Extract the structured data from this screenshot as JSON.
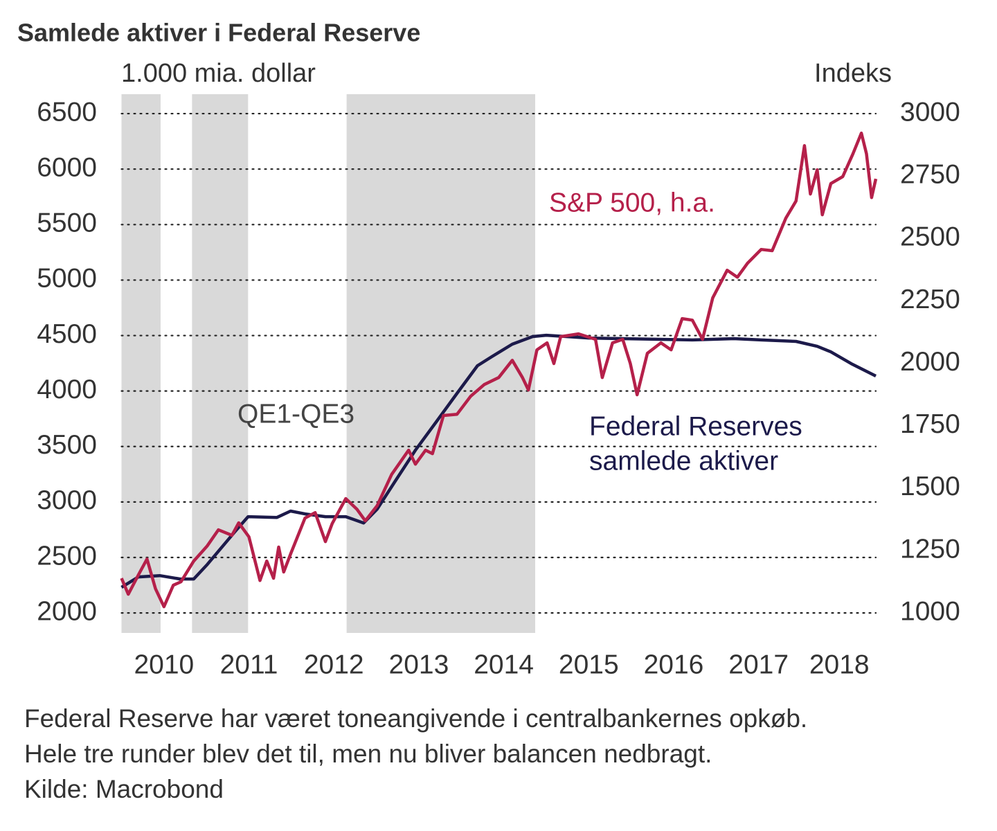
{
  "chart_data": {
    "type": "line",
    "title": "Samlede aktiver i Federal Reserve",
    "y_label": "1.000 mia. dollar",
    "y2_label": "Indeks",
    "xlim": [
      2010.0,
      2018.88
    ],
    "xticks": [
      {
        "value": 2010.5,
        "label": "2010"
      },
      {
        "value": 2011.5,
        "label": "2011"
      },
      {
        "value": 2012.5,
        "label": "2012"
      },
      {
        "value": 2013.5,
        "label": "2013"
      },
      {
        "value": 2014.5,
        "label": "2014"
      },
      {
        "value": 2015.5,
        "label": "2015"
      },
      {
        "value": 2016.5,
        "label": "2016"
      },
      {
        "value": 2017.5,
        "label": "2017"
      },
      {
        "value": 2018.45,
        "label": "2018"
      }
    ],
    "ylim": [
      1820,
      6675
    ],
    "yticks": [
      2000,
      2500,
      3000,
      3500,
      4000,
      4500,
      5000,
      5500,
      6000,
      6500
    ],
    "y2lim": [
      920,
      3078
    ],
    "y2ticks": [
      1000,
      1250,
      1500,
      1750,
      2000,
      2250,
      2500,
      2750,
      3000
    ],
    "grid": true,
    "shaded_periods": [
      [
        2010.0,
        2010.46
      ],
      [
        2010.83,
        2011.49
      ],
      [
        2012.65,
        2014.87
      ]
    ],
    "shade_color": "#d9d9d9",
    "series": [
      {
        "color": "#1c1a4a",
        "x": [
          2010.0,
          2010.2,
          2010.45,
          2010.69,
          2010.85,
          2011.01,
          2011.34,
          2011.49,
          2011.83,
          2011.99,
          2012.16,
          2012.4,
          2012.64,
          2012.85,
          2013.01,
          2013.22,
          2013.46,
          2013.7,
          2013.95,
          2014.19,
          2014.36,
          2014.6,
          2014.84,
          2015.0,
          2015.5,
          2015.9,
          2016.72,
          2017.21,
          2017.53,
          2017.94,
          2018.19,
          2018.35,
          2018.59,
          2018.88
        ],
        "values": [
          2231,
          2325,
          2337,
          2306,
          2306,
          2437,
          2737,
          2868,
          2861,
          2918,
          2893,
          2868,
          2868,
          2811,
          2936,
          3186,
          3467,
          3717,
          3979,
          4228,
          4310,
          4422,
          4491,
          4503,
          4478,
          4472,
          4460,
          4472,
          4460,
          4447,
          4403,
          4353,
          4247,
          4135
        ]
      },
      {
        "color": "#b5204a",
        "axis": "y2",
        "x": [
          2010.0,
          2010.08,
          2010.2,
          2010.3,
          2010.4,
          2010.5,
          2010.61,
          2010.7,
          2010.85,
          2011.01,
          2011.14,
          2011.3,
          2011.38,
          2011.5,
          2011.63,
          2011.71,
          2011.79,
          2011.85,
          2011.91,
          2011.99,
          2012.16,
          2012.28,
          2012.4,
          2012.48,
          2012.64,
          2012.77,
          2012.87,
          2013.01,
          2013.18,
          2013.38,
          2013.46,
          2013.58,
          2013.66,
          2013.79,
          2013.95,
          2014.11,
          2014.27,
          2014.44,
          2014.6,
          2014.72,
          2014.79,
          2014.89,
          2015.01,
          2015.09,
          2015.17,
          2015.38,
          2015.58,
          2015.66,
          2015.78,
          2015.9,
          2015.99,
          2016.07,
          2016.19,
          2016.35,
          2016.47,
          2016.6,
          2016.72,
          2016.84,
          2016.96,
          2017.13,
          2017.25,
          2017.37,
          2017.53,
          2017.66,
          2017.82,
          2017.94,
          2018.04,
          2018.11,
          2018.19,
          2018.25,
          2018.35,
          2018.49,
          2018.61,
          2018.71,
          2018.77,
          2018.83,
          2018.88
        ],
        "values": [
          1139,
          1075,
          1153,
          1216,
          1097,
          1025,
          1111,
          1125,
          1208,
          1269,
          1333,
          1311,
          1361,
          1305,
          1130,
          1208,
          1139,
          1264,
          1164,
          1236,
          1380,
          1402,
          1286,
          1358,
          1458,
          1416,
          1369,
          1430,
          1555,
          1652,
          1596,
          1652,
          1638,
          1791,
          1796,
          1868,
          1915,
          1943,
          2012,
          1943,
          1893,
          2054,
          2082,
          1999,
          2107,
          2118,
          2096,
          1943,
          2082,
          2096,
          1999,
          1874,
          2040,
          2082,
          2054,
          2179,
          2173,
          2096,
          2262,
          2373,
          2345,
          2401,
          2456,
          2451,
          2581,
          2650,
          2872,
          2678,
          2775,
          2595,
          2720,
          2748,
          2839,
          2922,
          2839,
          2664,
          2739
        ]
      }
    ],
    "annotations": [
      {
        "text": "S&P 500, h.a.",
        "color": "#b5204a"
      },
      {
        "text": "QE1-QE3",
        "color": "#444444"
      },
      {
        "text": "Federal Reserves",
        "color": "#1c1a4a"
      },
      {
        "text": "samlede aktiver",
        "color": "#1c1a4a"
      }
    ],
    "caption": [
      "Federal Reserve har været toneangivende i centralbankernes opkøb.",
      "Hele tre runder blev det til, men nu bliver balancen nedbragt.",
      "Kilde: Macrobond"
    ]
  }
}
